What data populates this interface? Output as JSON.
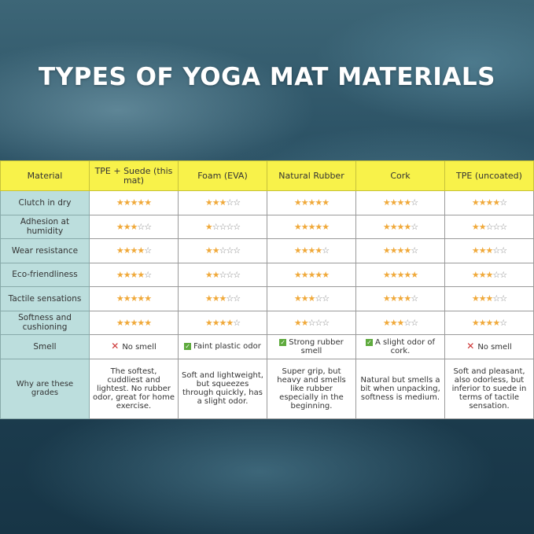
{
  "title": "TYPES OF YOGA MAT MATERIALS",
  "colors": {
    "header": "#f8f24a",
    "label_column": "#bcdedd",
    "star": "#f0a93a"
  },
  "header": [
    "Material",
    "TPE + Suede (this mat)",
    "Foam (EVA)",
    "Natural Rubber",
    "Cork",
    "TPE (uncoated)"
  ],
  "rating_rows": [
    {
      "label": "Clutch in dry",
      "stars": [
        5,
        3,
        5,
        4,
        4
      ]
    },
    {
      "label": "Adhesion at humidity",
      "stars": [
        3,
        1,
        5,
        4,
        2
      ]
    },
    {
      "label": "Wear resistance",
      "stars": [
        4,
        2,
        4,
        4,
        3
      ]
    },
    {
      "label": "Eco-friendliness",
      "stars": [
        4,
        2,
        5,
        5,
        3
      ]
    },
    {
      "label": "Tactile sensations",
      "stars": [
        5,
        3,
        3,
        4,
        3
      ]
    },
    {
      "label": "Softness and cushioning",
      "stars": [
        5,
        4,
        2,
        3,
        4
      ]
    }
  ],
  "smell": {
    "label": "Smell",
    "cells": [
      {
        "icon": "cross-icon",
        "text": "No smell"
      },
      {
        "icon": "check-icon",
        "text": "Faint plastic odor"
      },
      {
        "icon": "check-icon",
        "text": "Strong rubber smell"
      },
      {
        "icon": "check-icon",
        "text": "A slight odor of cork."
      },
      {
        "icon": "cross-icon",
        "text": "No smell"
      }
    ]
  },
  "why": {
    "label": "Why are these grades",
    "cells": [
      "The softest, cuddliest and lightest. No rubber odor, great for home exercise.",
      "Soft and lightweight, but squeezes through quickly, has a slight odor.",
      "Super grip, but heavy and smells like rubber especially in the beginning.",
      "Natural but smells a bit when unpacking, softness is medium.",
      "Soft and pleasant, also odorless, but inferior to suede in terms of tactile sensation."
    ]
  }
}
